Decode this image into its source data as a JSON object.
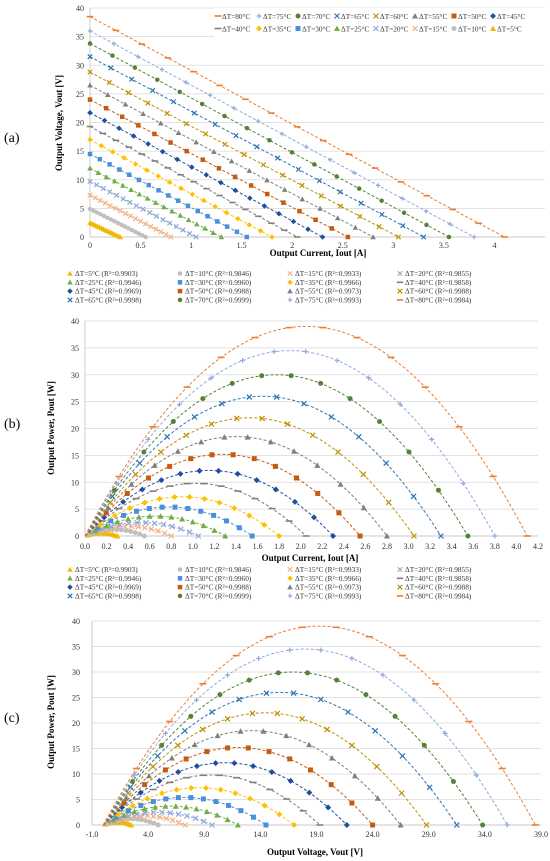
{
  "panel_labels": [
    "(a)",
    "(b)",
    "(c)"
  ],
  "chart_data": [
    {
      "type": "scatter",
      "panel": "(a)",
      "xlabel": "Output Current, Iout [A]",
      "ylabel": "Output Voltage, Vout [V]",
      "xlim": [
        0,
        4.5
      ],
      "ylim": [
        0,
        40
      ],
      "xticks": [
        "0",
        "0.5",
        "1",
        "1.5",
        "2",
        "2.5",
        "3",
        "3.5",
        "4"
      ],
      "yticks": [
        "0",
        "5",
        "10",
        "15",
        "20",
        "25",
        "30",
        "35",
        "40"
      ],
      "grid": true,
      "legend_position": "top-right",
      "series": [
        {
          "name": "ΔT=80°C",
          "v0": 38.5,
          "isc": 4.1
        },
        {
          "name": "ΔT=75°C",
          "v0": 36.0,
          "isc": 3.8
        },
        {
          "name": "ΔT=70°C",
          "v0": 33.8,
          "isc": 3.55
        },
        {
          "name": "ΔT=65°C",
          "v0": 31.5,
          "isc": 3.3
        },
        {
          "name": "ΔT=60°C",
          "v0": 28.8,
          "isc": 3.05
        },
        {
          "name": "ΔT=55°C",
          "v0": 26.5,
          "isc": 2.8
        },
        {
          "name": "ΔT=50°C",
          "v0": 24.0,
          "isc": 2.55
        },
        {
          "name": "ΔT=45°C",
          "v0": 21.7,
          "isc": 2.3
        },
        {
          "name": "ΔT=40°C",
          "v0": 19.3,
          "isc": 2.05
        },
        {
          "name": "ΔT=35°C",
          "v0": 17.0,
          "isc": 1.8
        },
        {
          "name": "ΔT=30°C",
          "v0": 14.5,
          "isc": 1.55
        },
        {
          "name": "ΔT=25°C",
          "v0": 12.0,
          "isc": 1.3
        },
        {
          "name": "ΔT=20°C",
          "v0": 9.7,
          "isc": 1.05
        },
        {
          "name": "ΔT=15°C",
          "v0": 7.3,
          "isc": 0.8
        },
        {
          "name": "ΔT=10°C",
          "v0": 4.9,
          "isc": 0.55
        },
        {
          "name": "ΔT=5°C",
          "v0": 2.5,
          "isc": 0.3
        }
      ]
    },
    {
      "type": "scatter",
      "panel": "(b)",
      "xlabel": "Output Current, Iout [A]",
      "ylabel": "Output Power, Pout  [W]",
      "xlim": [
        0,
        4.2
      ],
      "ylim": [
        0,
        40
      ],
      "xticks": [
        "0.0",
        "0.2",
        "0.4",
        "0.6",
        "0.8",
        "1.0",
        "1.2",
        "1.4",
        "1.6",
        "1.8",
        "2.0",
        "2.2",
        "2.4",
        "2.6",
        "2.8",
        "3.0",
        "3.2",
        "3.4",
        "3.6",
        "3.8",
        "4.0",
        "4.2"
      ],
      "yticks": [
        "0",
        "5",
        "10",
        "15",
        "20",
        "25",
        "30",
        "35",
        "40"
      ],
      "grid": true,
      "legend_position": "top",
      "legend": [
        "ΔT=5°C (R²=0.9903)",
        "ΔT=10°C (R²=0.9846)",
        "ΔT=15°C (R²=0.9933)",
        "ΔT=20°C (R²=0.9855)",
        "ΔT=25°C (R²=0.9946)",
        "ΔT=30°C (R²=0.9960)",
        "ΔT=35°C (R²=0.9966)",
        "ΔT=40°C (R²=0.9858)",
        "ΔT=45°C (R²=0.9969)",
        "ΔT=50°C (R²=0.9988)",
        "ΔT=55°C (R²=0.9973)",
        "ΔT=60°C (R²=0.9988)",
        "ΔT=65°C (R²=0.9998)",
        "ΔT=70°C (R²=0.9999)",
        "ΔT=75°C (R²=0.9993)",
        "ΔT=80°C (R²=0.9984)"
      ],
      "peak_power": [
        0.6,
        1.2,
        1.8,
        2.5,
        3.7,
        5.4,
        7.3,
        9.8,
        12.2,
        15.2,
        18.5,
        22.0,
        26.0,
        30.0,
        34.5,
        39.0
      ],
      "short_circuit_current": [
        0.3,
        0.55,
        0.8,
        1.05,
        1.3,
        1.55,
        1.8,
        2.05,
        2.3,
        2.55,
        2.8,
        3.05,
        3.3,
        3.55,
        3.8,
        4.1
      ]
    },
    {
      "type": "scatter",
      "panel": "(c)",
      "xlabel": "Output Voltage, Vout [V]",
      "ylabel": "Output Power, Pout  [W]",
      "xlim": [
        -1,
        39
      ],
      "ylim": [
        0,
        40
      ],
      "xticks": [
        "-1.0",
        "4.0",
        "9.0",
        "14.0",
        "19.0",
        "24.0",
        "29.0",
        "34.0",
        "39.0"
      ],
      "yticks": [
        "0",
        "5",
        "10",
        "15",
        "20",
        "25",
        "30",
        "35",
        "40"
      ],
      "grid": true,
      "legend_position": "top",
      "legend": [
        "ΔT=5°C (R²=0.9903)",
        "ΔT=10°C (R²=0.9846)",
        "ΔT=15°C (R²=0.9933)",
        "ΔT=20°C (R²=0.9855)",
        "ΔT=25°C (R²=0.9946)",
        "ΔT=30°C (R²=0.9960)",
        "ΔT=35°C (R²=0.9966)",
        "ΔT=40°C (R²=0.9858)",
        "ΔT=45°C (R²=0.9969)",
        "ΔT=50°C (R²=0.9988)",
        "ΔT=55°C (R²=0.9973)",
        "ΔT=60°C (R²=0.9988)",
        "ΔT=65°C (R²=0.9998)",
        "ΔT=70°C (R²=0.9999)",
        "ΔT=75°C (R²=0.9993)",
        "ΔT=80°C (R²=0.9984)"
      ],
      "peak_power": [
        0.6,
        1.2,
        1.8,
        2.5,
        3.7,
        5.4,
        7.3,
        9.8,
        12.2,
        15.2,
        18.5,
        22.0,
        26.0,
        30.0,
        34.5,
        39.0
      ],
      "open_circuit_voltage": [
        2.5,
        4.9,
        7.3,
        9.7,
        12.0,
        14.5,
        17.0,
        19.3,
        21.7,
        24.0,
        26.5,
        28.8,
        31.5,
        33.8,
        36.0,
        38.5
      ]
    }
  ],
  "series_styles": [
    {
      "color": "#f2b705",
      "marker": "tri"
    },
    {
      "color": "#bfbfbf",
      "marker": "circle"
    },
    {
      "color": "#f4b183",
      "marker": "x"
    },
    {
      "color": "#8fa8d8",
      "marker": "x"
    },
    {
      "color": "#70ad47",
      "marker": "tri"
    },
    {
      "color": "#4a90d9",
      "marker": "square"
    },
    {
      "color": "#ffc000",
      "marker": "diamond"
    },
    {
      "color": "#808080",
      "marker": "dash"
    },
    {
      "color": "#1f4e9f",
      "marker": "diamond"
    },
    {
      "color": "#c55a11",
      "marker": "square"
    },
    {
      "color": "#7f7f7f",
      "marker": "tri"
    },
    {
      "color": "#bf9000",
      "marker": "x"
    },
    {
      "color": "#2e75b6",
      "marker": "x"
    },
    {
      "color": "#548235",
      "marker": "circle"
    },
    {
      "color": "#8faadc",
      "marker": "plus"
    },
    {
      "color": "#ed7d31",
      "marker": "dash"
    }
  ]
}
